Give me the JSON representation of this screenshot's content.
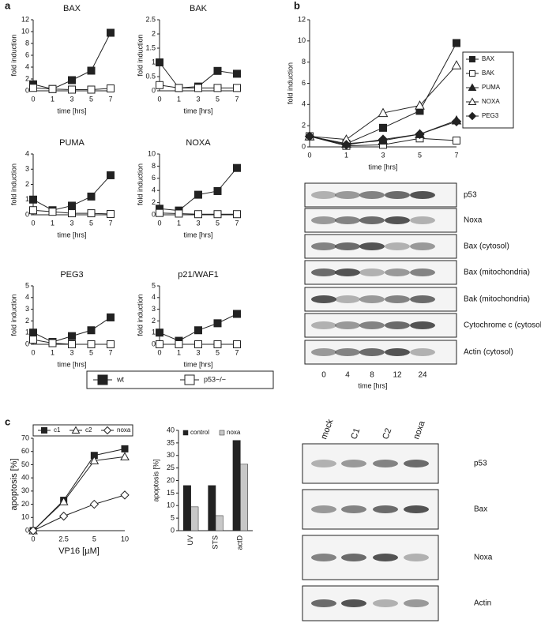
{
  "panels": [
    "a",
    "b",
    "c"
  ],
  "chart_data": [
    {
      "type": "line",
      "title": "BAX",
      "ylabel": "fold induction",
      "xlabel": "time [hrs]",
      "categories": [
        "0",
        "1",
        "3",
        "5",
        "7"
      ],
      "ylim": [
        0,
        12
      ],
      "yticks": [
        0,
        2,
        4,
        6,
        8,
        10,
        12
      ],
      "series": [
        {
          "marker": "square",
          "filled": true,
          "color": "#222222",
          "values": [
            1.1,
            0.3,
            1.8,
            3.4,
            9.8
          ]
        },
        {
          "marker": "square",
          "filled": false,
          "color": "#222222",
          "values": [
            0.5,
            0.3,
            0.2,
            0.2,
            0.4
          ]
        }
      ]
    },
    {
      "type": "line",
      "title": "BAK",
      "ylabel": "fold induction",
      "xlabel": "time [hrs]",
      "categories": [
        "0",
        "1",
        "3",
        "5",
        "7"
      ],
      "ylim": [
        0,
        2.5
      ],
      "yticks": [
        0,
        0.5,
        1,
        1.5,
        2,
        2.5
      ],
      "series": [
        {
          "marker": "square",
          "filled": true,
          "color": "#222222",
          "values": [
            1.0,
            0.1,
            0.15,
            0.7,
            0.6
          ]
        },
        {
          "marker": "square",
          "filled": false,
          "color": "#222222",
          "values": [
            0.2,
            0.1,
            0.1,
            0.1,
            0.1
          ]
        }
      ]
    },
    {
      "type": "line",
      "title": "PUMA",
      "ylabel": "fold induction",
      "xlabel": "time [hrs]",
      "categories": [
        "0",
        "1",
        "3",
        "5",
        "7"
      ],
      "ylim": [
        0,
        4
      ],
      "yticks": [
        0,
        1,
        2,
        3,
        4
      ],
      "series": [
        {
          "marker": "square",
          "filled": true,
          "color": "#222222",
          "values": [
            1.0,
            0.3,
            0.6,
            1.2,
            2.6
          ]
        },
        {
          "marker": "square",
          "filled": false,
          "color": "#222222",
          "values": [
            0.3,
            0.2,
            0.1,
            0.1,
            0.05
          ]
        }
      ]
    },
    {
      "type": "line",
      "title": "NOXA",
      "ylabel": "fold induction",
      "xlabel": "time [hrs]",
      "categories": [
        "0",
        "1",
        "3",
        "5",
        "7"
      ],
      "ylim": [
        0,
        10
      ],
      "yticks": [
        0,
        2,
        4,
        6,
        8,
        10
      ],
      "series": [
        {
          "marker": "square",
          "filled": true,
          "color": "#222222",
          "values": [
            1.0,
            0.7,
            3.3,
            3.9,
            7.7
          ]
        },
        {
          "marker": "square",
          "filled": false,
          "color": "#222222",
          "values": [
            0.3,
            0.2,
            0.1,
            0.1,
            0.1
          ]
        }
      ]
    },
    {
      "type": "line",
      "title": "PEG3",
      "ylabel": "fold induction",
      "xlabel": "time [hrs]",
      "categories": [
        "0",
        "1",
        "3",
        "5",
        "7"
      ],
      "ylim": [
        0,
        5
      ],
      "yticks": [
        0,
        1,
        2,
        3,
        4,
        5
      ],
      "series": [
        {
          "marker": "square",
          "filled": true,
          "color": "#222222",
          "values": [
            1.0,
            0.2,
            0.7,
            1.2,
            2.3
          ]
        },
        {
          "marker": "square",
          "filled": false,
          "color": "#222222",
          "values": [
            0.4,
            0.1,
            0.0,
            0.0,
            0.0
          ]
        }
      ]
    },
    {
      "type": "line",
      "title": "p21/WAF1",
      "ylabel": "fold induction",
      "xlabel": "time [hrs]",
      "categories": [
        "0",
        "1",
        "3",
        "5",
        "7"
      ],
      "ylim": [
        0,
        5
      ],
      "yticks": [
        0,
        1,
        2,
        3,
        4,
        5
      ],
      "series": [
        {
          "marker": "square",
          "filled": true,
          "color": "#222222",
          "values": [
            1.0,
            0.3,
            1.2,
            1.8,
            2.6
          ]
        },
        {
          "marker": "square",
          "filled": false,
          "color": "#222222",
          "values": [
            0,
            0,
            0,
            0,
            0
          ]
        }
      ]
    },
    {
      "type": "line",
      "ylabel": "fold induction",
      "xlabel": "time [hrs]",
      "categories": [
        "0",
        "1",
        "3",
        "5",
        "7"
      ],
      "ylim": [
        0,
        12
      ],
      "yticks": [
        0,
        2,
        4,
        6,
        8,
        10,
        12
      ],
      "series": [
        {
          "name": "BAX",
          "marker": "square",
          "filled": true,
          "color": "#222222",
          "values": [
            1.0,
            0.3,
            1.8,
            3.4,
            9.8
          ]
        },
        {
          "name": "BAK",
          "marker": "square",
          "filled": false,
          "color": "#222222",
          "values": [
            1.0,
            0.1,
            0.2,
            0.8,
            0.6
          ]
        },
        {
          "name": "PUMA",
          "marker": "triangle",
          "filled": true,
          "color": "#222222",
          "values": [
            1.0,
            0.3,
            0.6,
            1.2,
            2.5
          ]
        },
        {
          "name": "NOXA",
          "marker": "triangle",
          "filled": false,
          "color": "#222222",
          "values": [
            1.0,
            0.7,
            3.2,
            3.9,
            7.7
          ]
        },
        {
          "name": "PEG3",
          "marker": "diamond",
          "filled": true,
          "color": "#222222",
          "values": [
            1.0,
            0.2,
            0.7,
            1.2,
            2.4
          ]
        }
      ]
    },
    {
      "type": "line",
      "ylabel": "apoptosis [%]",
      "xlabel": "VP16 [µM]",
      "categories": [
        "0",
        "2.5",
        "5",
        "10"
      ],
      "ylim": [
        0,
        70
      ],
      "yticks": [
        0,
        10,
        20,
        30,
        40,
        50,
        60,
        70
      ],
      "series": [
        {
          "name": "c1",
          "marker": "square",
          "filled": true,
          "color": "#222222",
          "values": [
            0,
            23,
            57,
            62
          ]
        },
        {
          "name": "c2",
          "marker": "triangle",
          "filled": false,
          "color": "#222222",
          "values": [
            0,
            22,
            53,
            56
          ]
        },
        {
          "name": "noxa",
          "marker": "diamond",
          "filled": false,
          "color": "#222222",
          "values": [
            0,
            11,
            20,
            27
          ]
        }
      ]
    },
    {
      "type": "bar",
      "ylabel": "apoptosis [%]",
      "categories": [
        "UV",
        "STS",
        "actD"
      ],
      "ylim": [
        0,
        40
      ],
      "yticks": [
        0,
        5,
        10,
        15,
        20,
        25,
        30,
        35,
        40
      ],
      "series": [
        {
          "name": "control",
          "color": "#222222",
          "values": [
            18,
            18,
            36
          ]
        },
        {
          "name": "noxa",
          "color": "#c8c8c8",
          "values": [
            9.5,
            6,
            26.5
          ]
        }
      ]
    }
  ],
  "legend_a": {
    "entries": [
      "wt",
      "p53−/−"
    ]
  },
  "blots": [
    {
      "rows": [
        "p53",
        "Noxa",
        "Bax (cytosol)",
        "Bax (mitochondria)",
        "Bak (mitochondria)",
        "Cytochrome c (cytosol)",
        "Actin (cytosol)"
      ],
      "columns": [
        "0",
        "4",
        "8",
        "12",
        "24"
      ],
      "xlabel": "time [hrs]"
    },
    {
      "rows": [
        "p53",
        "Bax",
        "Noxa",
        "Actin"
      ],
      "columns": [
        "mock",
        "C1",
        "C2",
        "noxa"
      ]
    }
  ]
}
